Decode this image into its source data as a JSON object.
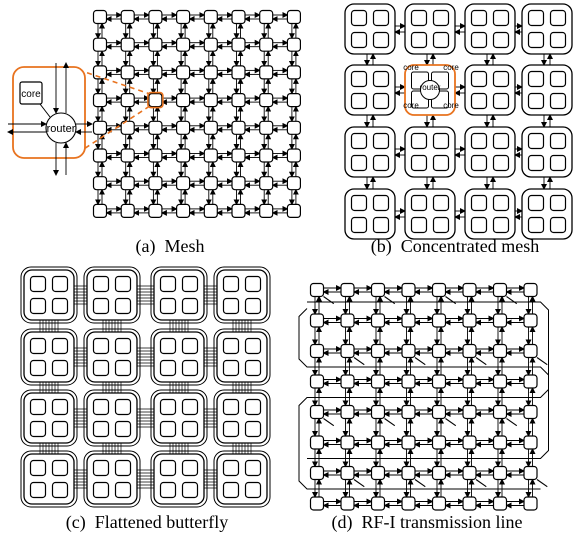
{
  "panels": [
    {
      "id": "mesh",
      "caption": "(a)  Mesh",
      "inset": {
        "core_label": "core",
        "router_label": "router"
      }
    },
    {
      "id": "cmesh",
      "caption": "(b)  Concentrated mesh",
      "inset": {
        "core_label": "core",
        "router_label": "router"
      }
    },
    {
      "id": "fbfly",
      "caption": "(c)  Flattened butterfly"
    },
    {
      "id": "rfi",
      "caption": "(d)  RF-I transmission line"
    }
  ],
  "colors": {
    "line": "#000000",
    "highlight": "#e8731f",
    "background": "#ffffff"
  }
}
